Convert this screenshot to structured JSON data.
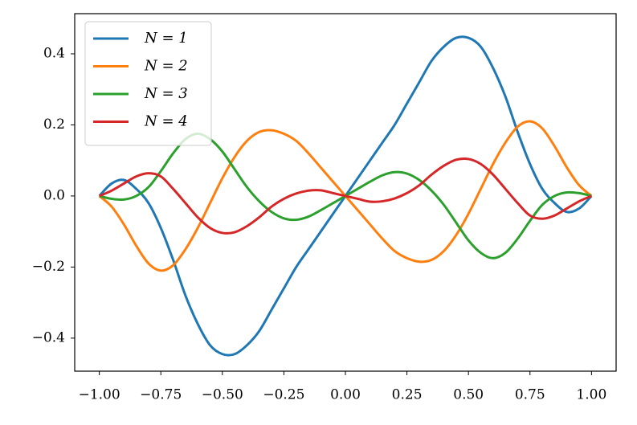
{
  "chart_data": {
    "type": "line",
    "x": [
      -1,
      -0.95,
      -0.9,
      -0.85,
      -0.8,
      -0.75,
      -0.7,
      -0.65,
      -0.6,
      -0.55,
      -0.5,
      -0.45,
      -0.4,
      -0.35,
      -0.3,
      -0.25,
      -0.2,
      -0.15,
      -0.1,
      -0.05,
      0,
      0.05,
      0.1,
      0.15,
      0.2,
      0.25,
      0.3,
      0.35,
      0.4,
      0.45,
      0.5,
      0.55,
      0.6,
      0.65,
      0.7,
      0.75,
      0.8,
      0.85,
      0.9,
      0.95,
      1
    ],
    "series": [
      {
        "name": "N = 1",
        "color": "#1f77b4",
        "values": [
          0,
          0.035,
          0.045,
          0.02,
          -0.02,
          -0.09,
          -0.18,
          -0.28,
          -0.36,
          -0.42,
          -0.445,
          -0.445,
          -0.42,
          -0.38,
          -0.32,
          -0.26,
          -0.2,
          -0.15,
          -0.1,
          -0.05,
          0,
          0.05,
          0.1,
          0.15,
          0.2,
          0.26,
          0.32,
          0.38,
          0.42,
          0.445,
          0.445,
          0.42,
          0.36,
          0.28,
          0.18,
          0.09,
          0.02,
          -0.02,
          -0.045,
          -0.035,
          0
        ]
      },
      {
        "name": "N = 2",
        "color": "#ff7f0e",
        "values": [
          0,
          -0.03,
          -0.08,
          -0.14,
          -0.19,
          -0.21,
          -0.195,
          -0.15,
          -0.09,
          -0.02,
          0.05,
          0.11,
          0.155,
          0.18,
          0.185,
          0.175,
          0.155,
          0.12,
          0.08,
          0.04,
          0,
          -0.04,
          -0.08,
          -0.12,
          -0.155,
          -0.175,
          -0.185,
          -0.18,
          -0.155,
          -0.11,
          -0.05,
          0.02,
          0.09,
          0.15,
          0.195,
          0.21,
          0.19,
          0.14,
          0.08,
          0.03,
          0
        ]
      },
      {
        "name": "N = 3",
        "color": "#2ca02c",
        "values": [
          0,
          -0.008,
          -0.01,
          0,
          0.025,
          0.07,
          0.12,
          0.16,
          0.175,
          0.16,
          0.125,
          0.075,
          0.025,
          -0.015,
          -0.045,
          -0.063,
          -0.067,
          -0.058,
          -0.04,
          -0.02,
          0,
          0.02,
          0.04,
          0.058,
          0.067,
          0.063,
          0.045,
          0.015,
          -0.025,
          -0.075,
          -0.125,
          -0.16,
          -0.175,
          -0.16,
          -0.12,
          -0.07,
          -0.025,
          0,
          0.01,
          0.008,
          0
        ]
      },
      {
        "name": "N = 4",
        "color": "#d62728",
        "values": [
          0,
          0.015,
          0.035,
          0.055,
          0.064,
          0.055,
          0.02,
          -0.02,
          -0.06,
          -0.09,
          -0.104,
          -0.102,
          -0.085,
          -0.06,
          -0.03,
          -0.008,
          0.007,
          0.015,
          0.016,
          0.008,
          0,
          -0.008,
          -0.016,
          -0.015,
          -0.007,
          0.008,
          0.03,
          0.06,
          0.085,
          0.102,
          0.104,
          0.09,
          0.06,
          0.02,
          -0.02,
          -0.055,
          -0.064,
          -0.055,
          -0.035,
          -0.015,
          0
        ]
      }
    ],
    "xlim": [
      -1.1,
      1.1
    ],
    "ylim": [
      -0.493,
      0.513
    ],
    "xticks": [
      {
        "value": -1,
        "label": "−1.00"
      },
      {
        "value": -0.75,
        "label": "−0.75"
      },
      {
        "value": -0.5,
        "label": "−0.50"
      },
      {
        "value": -0.25,
        "label": "−0.25"
      },
      {
        "value": 0,
        "label": "0.00"
      },
      {
        "value": 0.25,
        "label": "0.25"
      },
      {
        "value": 0.5,
        "label": "0.50"
      },
      {
        "value": 0.75,
        "label": "0.75"
      },
      {
        "value": 1,
        "label": "1.00"
      }
    ],
    "yticks": [
      {
        "value": -0.4,
        "label": "−0.4"
      },
      {
        "value": -0.2,
        "label": "−0.2"
      },
      {
        "value": 0,
        "label": "0.0"
      },
      0.2,
      0.4
    ],
    "legend": "upper left"
  }
}
